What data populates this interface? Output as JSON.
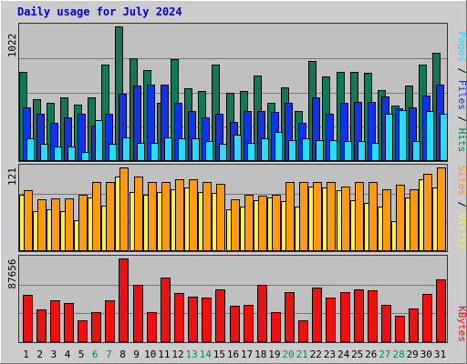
{
  "title": "Daily usage for July 2024",
  "colors": {
    "background": "#cccccc",
    "panel": "#c0c0c0",
    "title": "#0000cc",
    "weekday_label": "#000000",
    "weekend_label": "#008866",
    "hits": "#117755",
    "files": "#1133ee",
    "pages": "#22ddff",
    "visits": "#ffee44",
    "sites": "#ff9911",
    "kbytes": "#ee1111"
  },
  "labels": {
    "hits": "Hits",
    "files": "Files",
    "pages": "Pages",
    "visits": "Visits",
    "sites": "Sites",
    "kbytes": "KBytes",
    "separator": " / "
  },
  "chart_data": [
    {
      "type": "bar",
      "panel": "Pages / Files / Hits",
      "ylabel_max": "1022",
      "ylim": [
        0,
        1022
      ],
      "x": [
        "1",
        "2",
        "3",
        "4",
        "5",
        "6",
        "7",
        "8",
        "9",
        "10",
        "11",
        "12",
        "13",
        "14",
        "15",
        "16",
        "17",
        "18",
        "19",
        "20",
        "21",
        "22",
        "23",
        "24",
        "25",
        "26",
        "27",
        "28",
        "29",
        "30",
        "31"
      ],
      "weekend": [
        "6",
        "7",
        "13",
        "14",
        "20",
        "21",
        "27",
        "28"
      ],
      "series": [
        {
          "name": "Hits",
          "values": [
            680,
            470,
            440,
            480,
            430,
            480,
            730,
            1022,
            780,
            690,
            440,
            770,
            550,
            530,
            730,
            520,
            530,
            650,
            440,
            560,
            380,
            760,
            640,
            680,
            680,
            670,
            540,
            420,
            570,
            730,
            820
          ]
        },
        {
          "name": "Files",
          "values": [
            410,
            360,
            290,
            330,
            360,
            270,
            360,
            510,
            570,
            580,
            580,
            440,
            380,
            330,
            360,
            300,
            380,
            380,
            370,
            440,
            290,
            480,
            360,
            440,
            450,
            450,
            490,
            400,
            410,
            500,
            580
          ]
        },
        {
          "name": "Pages",
          "values": [
            170,
            130,
            110,
            110,
            70,
            310,
            130,
            180,
            140,
            140,
            180,
            170,
            170,
            150,
            130,
            200,
            140,
            170,
            220,
            160,
            170,
            160,
            160,
            150,
            150,
            140,
            360,
            390,
            150,
            380,
            360
          ]
        }
      ]
    },
    {
      "type": "bar",
      "panel": "Sites / Visits",
      "ylabel_max": "121",
      "ylim": [
        0,
        121
      ],
      "x": [
        "1",
        "2",
        "3",
        "4",
        "5",
        "6",
        "7",
        "8",
        "9",
        "10",
        "11",
        "12",
        "13",
        "14",
        "15",
        "16",
        "17",
        "18",
        "19",
        "20",
        "21",
        "22",
        "23",
        "24",
        "25",
        "26",
        "27",
        "28",
        "29",
        "30",
        "31"
      ],
      "series": [
        {
          "name": "Visits",
          "values": [
            82,
            58,
            60,
            58,
            45,
            78,
            66,
            108,
            86,
            82,
            86,
            90,
            92,
            86,
            84,
            60,
            64,
            74,
            78,
            72,
            64,
            94,
            92,
            88,
            74,
            70,
            64,
            44,
            78,
            104,
            92
          ]
        },
        {
          "name": "Sites",
          "values": [
            88,
            75,
            76,
            76,
            82,
            100,
            100,
            121,
            108,
            100,
            100,
            104,
            104,
            100,
            97,
            75,
            82,
            80,
            82,
            100,
            100,
            100,
            100,
            94,
            100,
            100,
            90,
            96,
            90,
            112,
            121
          ]
        }
      ]
    },
    {
      "type": "bar",
      "panel": "KBytes",
      "ylabel_max": "87656",
      "ylim": [
        0,
        87656
      ],
      "x": [
        "1",
        "2",
        "3",
        "4",
        "5",
        "6",
        "7",
        "8",
        "9",
        "10",
        "11",
        "12",
        "13",
        "14",
        "15",
        "16",
        "17",
        "18",
        "19",
        "20",
        "21",
        "22",
        "23",
        "24",
        "25",
        "26",
        "27",
        "28",
        "29",
        "30",
        "31"
      ],
      "series": [
        {
          "name": "KBytes",
          "values": [
            50000,
            34500,
            43500,
            40500,
            22500,
            31000,
            43500,
            87656,
            60500,
            31500,
            68000,
            51000,
            47500,
            46500,
            55000,
            38000,
            39500,
            60000,
            31500,
            52500,
            22500,
            57000,
            47000,
            52000,
            55000,
            54000,
            39500,
            28000,
            35000,
            50500,
            66000
          ]
        }
      ]
    }
  ]
}
